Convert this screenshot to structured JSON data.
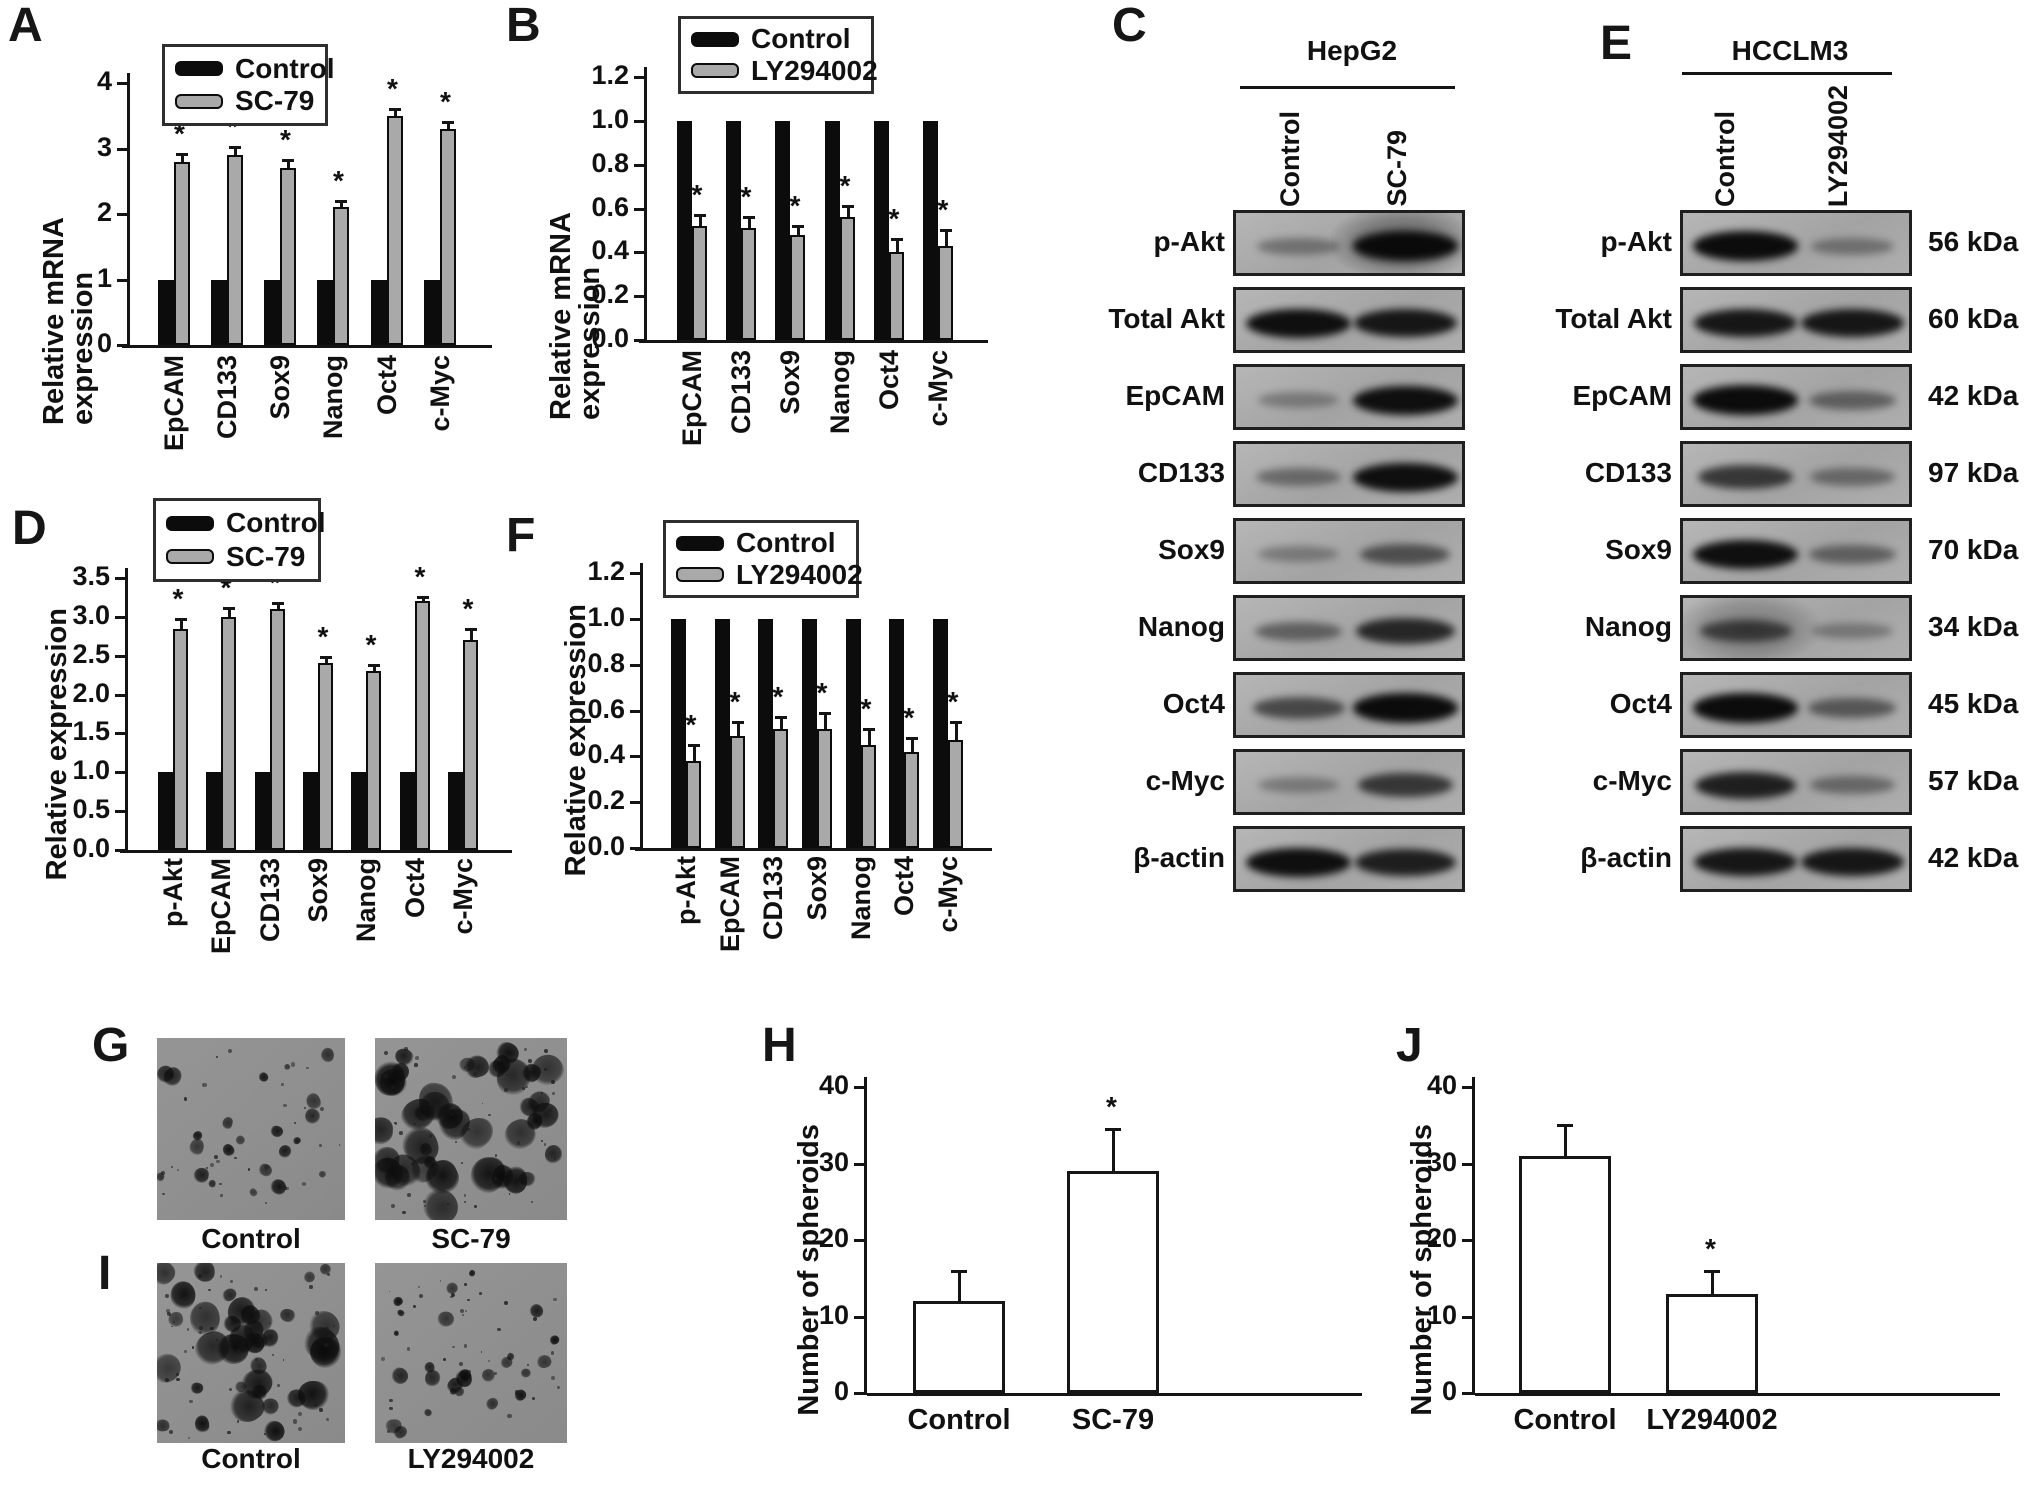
{
  "panel_letters": {
    "A": "A",
    "B": "B",
    "C": "C",
    "D": "D",
    "E": "E",
    "F": "F",
    "G": "G",
    "H": "H",
    "I": "I",
    "J": "J"
  },
  "colors": {
    "control_bar": "#0c0c0c",
    "treatment_bar": "#a9a9a9",
    "white_bar": "#ffffff",
    "axis": "#141414"
  },
  "sig_marker": "*",
  "chart_data": [
    {
      "panel": "A",
      "type": "bar",
      "title": "",
      "xlabel": "",
      "ylabel": "Relative mRNA expression",
      "ylim": [
        0,
        4
      ],
      "yticks": [
        "0",
        "1",
        "2",
        "3",
        "4"
      ],
      "grid": false,
      "legend_position": "top",
      "categories": [
        "EpCAM",
        "CD133",
        "Sox9",
        "Nanog",
        "Oct4",
        "c-Myc"
      ],
      "series": [
        {
          "name": "Control",
          "values": [
            1,
            1,
            1,
            1,
            1,
            1
          ],
          "errors": null,
          "sig": null
        },
        {
          "name": "SC-79",
          "values": [
            2.8,
            2.9,
            2.7,
            2.1,
            3.5,
            3.3
          ],
          "errors": [
            0.12,
            0.12,
            0.12,
            0.1,
            0.1,
            0.1
          ],
          "sig": [
            true,
            true,
            true,
            true,
            true,
            true
          ]
        }
      ],
      "legend": [
        "Control",
        "SC-79"
      ]
    },
    {
      "panel": "B",
      "type": "bar",
      "title": "",
      "xlabel": "",
      "ylabel": "Relative mRNA expression",
      "ylim": [
        0,
        1.2
      ],
      "yticks": [
        "0.0",
        "0.2",
        "0.4",
        "0.6",
        "0.8",
        "1.0",
        "1.2"
      ],
      "grid": false,
      "legend_position": "top",
      "categories": [
        "EpCAM",
        "CD133",
        "Sox9",
        "Nanog",
        "Oct4",
        "c-Myc"
      ],
      "series": [
        {
          "name": "Control",
          "values": [
            1,
            1,
            1,
            1,
            1,
            1
          ],
          "errors": null,
          "sig": null
        },
        {
          "name": "LY294002",
          "values": [
            0.52,
            0.51,
            0.48,
            0.56,
            0.4,
            0.43
          ],
          "errors": [
            0.05,
            0.05,
            0.04,
            0.05,
            0.06,
            0.07
          ],
          "sig": [
            true,
            true,
            true,
            true,
            true,
            true
          ]
        }
      ],
      "legend": [
        "Control",
        "LY294002"
      ]
    },
    {
      "panel": "D",
      "type": "bar",
      "title": "",
      "xlabel": "",
      "ylabel": "Relative expression",
      "ylim": [
        0,
        3.5
      ],
      "yticks": [
        "0.0",
        "0.5",
        "1.0",
        "1.5",
        "2.0",
        "2.5",
        "3.0",
        "3.5"
      ],
      "grid": false,
      "legend_position": "top",
      "categories": [
        "p-Akt",
        "EpCAM",
        "CD133",
        "Sox9",
        "Nanog",
        "Oct4",
        "c-Myc"
      ],
      "series": [
        {
          "name": "Control",
          "values": [
            1,
            1,
            1,
            1,
            1,
            1,
            1
          ],
          "errors": null,
          "sig": null
        },
        {
          "name": "SC-79",
          "values": [
            2.85,
            3.0,
            3.1,
            2.4,
            2.3,
            3.2,
            2.7
          ],
          "errors": [
            0.12,
            0.12,
            0.08,
            0.08,
            0.08,
            0.06,
            0.15
          ],
          "sig": [
            true,
            true,
            true,
            true,
            true,
            true,
            true
          ]
        }
      ],
      "legend": [
        "Control",
        "SC-79"
      ]
    },
    {
      "panel": "F",
      "type": "bar",
      "title": "",
      "xlabel": "",
      "ylabel": "Relative expression",
      "ylim": [
        0,
        1.2
      ],
      "yticks": [
        "0.0",
        "0.2",
        "0.4",
        "0.6",
        "0.8",
        "1.0",
        "1.2"
      ],
      "grid": false,
      "legend_position": "top",
      "categories": [
        "p-Akt",
        "EpCAM",
        "CD133",
        "Sox9",
        "Nanog",
        "Oct4",
        "c-Myc"
      ],
      "series": [
        {
          "name": "Control",
          "values": [
            1,
            1,
            1,
            1,
            1,
            1,
            1
          ],
          "errors": null,
          "sig": null
        },
        {
          "name": "LY294002",
          "values": [
            0.38,
            0.49,
            0.52,
            0.52,
            0.45,
            0.42,
            0.47
          ],
          "errors": [
            0.07,
            0.06,
            0.05,
            0.07,
            0.07,
            0.06,
            0.08
          ],
          "sig": [
            true,
            true,
            true,
            true,
            true,
            true,
            true
          ]
        }
      ],
      "legend": [
        "Control",
        "LY294002"
      ]
    },
    {
      "panel": "H",
      "type": "bar",
      "title": "",
      "xlabel": "",
      "ylabel": "Number of spheroids",
      "ylim": [
        0,
        40
      ],
      "yticks": [
        "0",
        "10",
        "20",
        "30",
        "40"
      ],
      "grid": false,
      "legend_position": "none",
      "categories": [
        "Control",
        "SC-79"
      ],
      "series": [
        {
          "name": null,
          "values": [
            12,
            29
          ],
          "errors": [
            4,
            5.5
          ],
          "sig": [
            false,
            true
          ]
        }
      ],
      "legend": null
    },
    {
      "panel": "J",
      "type": "bar",
      "title": "",
      "xlabel": "",
      "ylabel": "Number of spheroids",
      "ylim": [
        0,
        40
      ],
      "yticks": [
        "0",
        "10",
        "20",
        "30",
        "40"
      ],
      "grid": false,
      "legend_position": "none",
      "categories": [
        "Control",
        "LY294002"
      ],
      "series": [
        {
          "name": null,
          "values": [
            31,
            13
          ],
          "errors": [
            4,
            3
          ],
          "sig": [
            false,
            true
          ]
        }
      ],
      "legend": null
    }
  ],
  "blots": [
    {
      "panel": "C",
      "cell_line": "HepG2",
      "lanes": [
        "Control",
        "SC-79"
      ],
      "rows": [
        {
          "label": "p-Akt",
          "kda": null,
          "bands": [
            0.35,
            0.97
          ],
          "haze": 0.5,
          "haze_lane": 1
        },
        {
          "label": "Total Akt",
          "kda": null,
          "bands": [
            0.95,
            0.9
          ],
          "haze": 0,
          "haze_lane": null
        },
        {
          "label": "EpCAM",
          "kda": null,
          "bands": [
            0.3,
            0.95
          ],
          "haze": 0,
          "haze_lane": null
        },
        {
          "label": "CD133",
          "kda": null,
          "bands": [
            0.4,
            0.95
          ],
          "haze": 0,
          "haze_lane": null
        },
        {
          "label": "Sox9",
          "kda": null,
          "bands": [
            0.3,
            0.55
          ],
          "haze": 0,
          "haze_lane": null
        },
        {
          "label": "Nanog",
          "kda": null,
          "bands": [
            0.45,
            0.8
          ],
          "haze": 0,
          "haze_lane": null
        },
        {
          "label": "Oct4",
          "kda": null,
          "bands": [
            0.6,
            0.97
          ],
          "haze": 0,
          "haze_lane": null
        },
        {
          "label": "c-Myc",
          "kda": null,
          "bands": [
            0.3,
            0.7
          ],
          "haze": 0,
          "haze_lane": null
        },
        {
          "label": "β-actin",
          "kda": null,
          "bands": [
            0.95,
            0.85
          ],
          "haze": 0,
          "haze_lane": null
        }
      ]
    },
    {
      "panel": "E",
      "cell_line": "HCCLM3",
      "lanes": [
        "Control",
        "LY294002"
      ],
      "rows": [
        {
          "label": "p-Akt",
          "kda": "56 kDa",
          "bands": [
            0.97,
            0.35
          ],
          "haze": 0,
          "haze_lane": null
        },
        {
          "label": "Total Akt",
          "kda": "60 kDa",
          "bands": [
            0.9,
            0.9
          ],
          "haze": 0,
          "haze_lane": null
        },
        {
          "label": "EpCAM",
          "kda": "42 kDa",
          "bands": [
            0.97,
            0.45
          ],
          "haze": 0,
          "haze_lane": null
        },
        {
          "label": "CD133",
          "kda": "97 kDa",
          "bands": [
            0.7,
            0.4
          ],
          "haze": 0,
          "haze_lane": null
        },
        {
          "label": "Sox9",
          "kda": "70 kDa",
          "bands": [
            0.95,
            0.45
          ],
          "haze": 0,
          "haze_lane": null
        },
        {
          "label": "Nanog",
          "kda": "34 kDa",
          "bands": [
            0.6,
            0.3
          ],
          "haze": 0.35,
          "haze_lane": 0
        },
        {
          "label": "Oct4",
          "kda": "45 kDa",
          "bands": [
            0.97,
            0.5
          ],
          "haze": 0,
          "haze_lane": null
        },
        {
          "label": "c-Myc",
          "kda": "57 kDa",
          "bands": [
            0.85,
            0.4
          ],
          "haze": 0,
          "haze_lane": null
        },
        {
          "label": "β-actin",
          "kda": "42 kDa",
          "bands": [
            0.9,
            0.9
          ],
          "haze": 0,
          "haze_lane": null
        }
      ]
    }
  ],
  "microscopy": [
    {
      "panel": "G",
      "images": [
        {
          "label": "Control",
          "spheroid_density": "low",
          "blob_count": 22,
          "blob_min": 3,
          "blob_max": 9,
          "seed": 7
        },
        {
          "label": "SC-79",
          "spheroid_density": "high",
          "blob_count": 40,
          "blob_min": 5,
          "blob_max": 18,
          "seed": 13
        }
      ]
    },
    {
      "panel": "I",
      "images": [
        {
          "label": "Control",
          "spheroid_density": "high",
          "blob_count": 36,
          "blob_min": 5,
          "blob_max": 17,
          "seed": 29
        },
        {
          "label": "LY294002",
          "spheroid_density": "low",
          "blob_count": 26,
          "blob_min": 3,
          "blob_max": 8,
          "seed": 41
        }
      ]
    }
  ]
}
